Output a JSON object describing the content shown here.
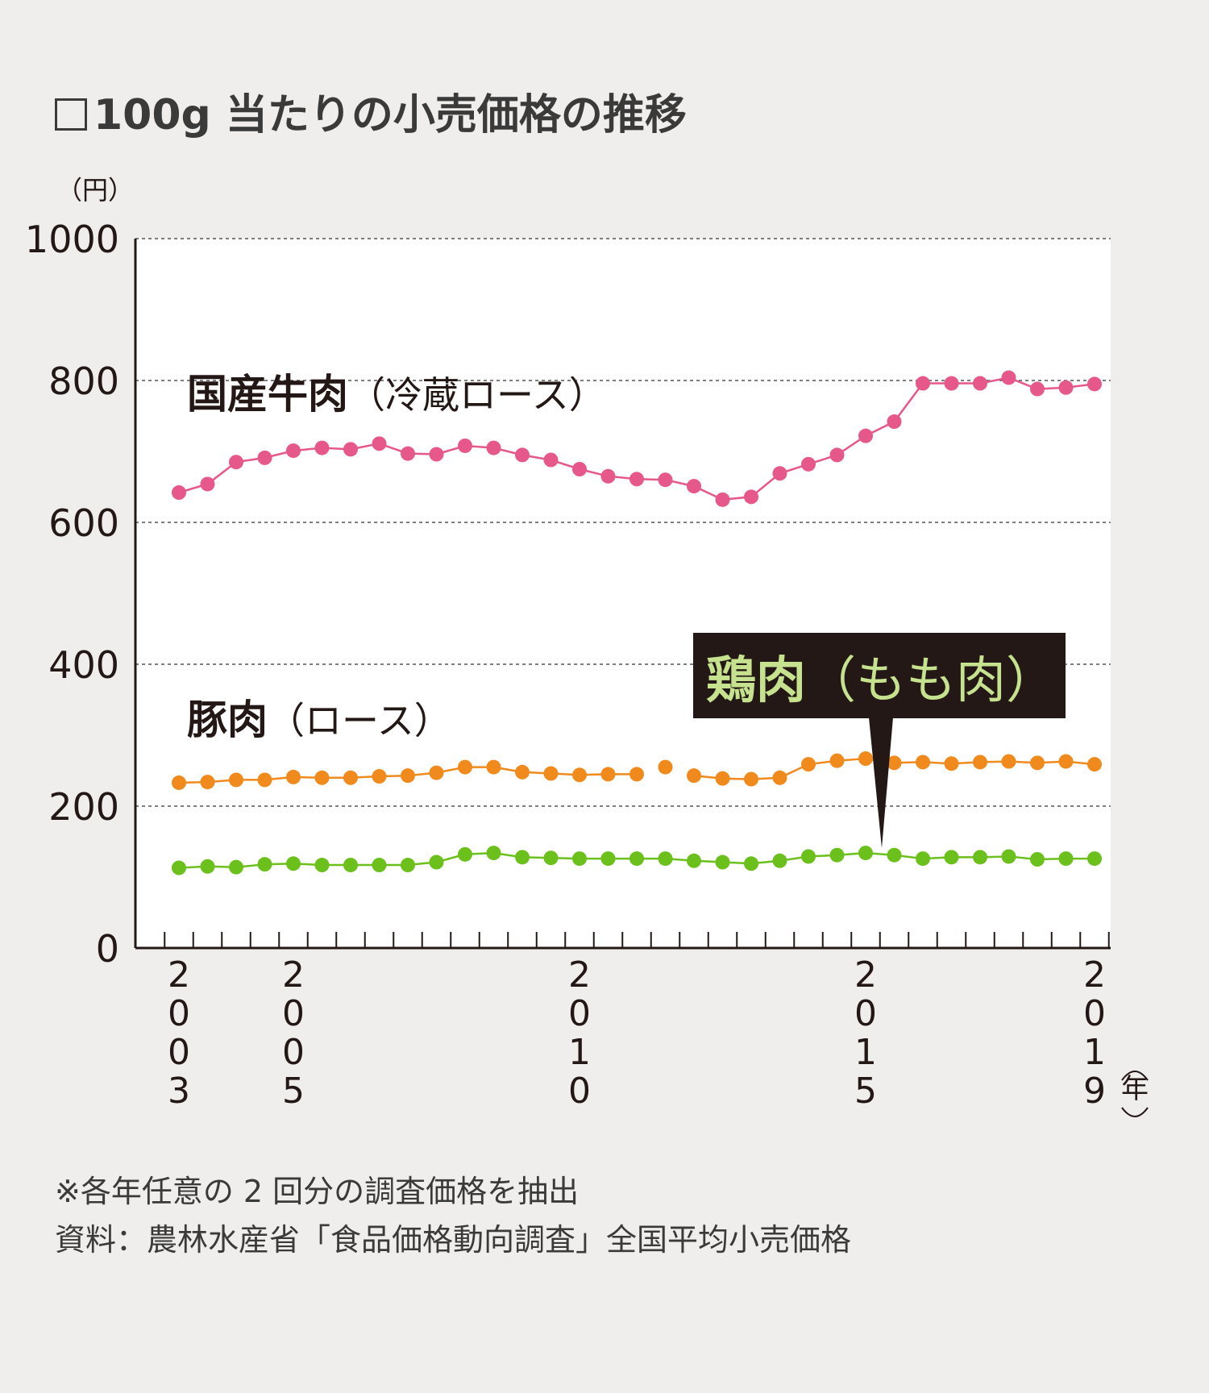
{
  "title": "100g 当たりの小売価格の推移",
  "notes": {
    "note": "※各年任意の 2 回分の調査価格を抽出",
    "source": "資料：農林水産省「食品価格動向調査」全国平均小売価格"
  },
  "colors": {
    "beef": "#e6578a",
    "pork": "#f08a1c",
    "chicken": "#6cc01c",
    "callout_bg": "#231815",
    "callout_text": "#c6e28f",
    "plot_bg": "#ffffff",
    "page_bg": "#efeeec"
  },
  "chart_data": {
    "type": "line",
    "y_unit_label": "（円）",
    "x_unit_label": "年",
    "ylim": [
      0,
      1000
    ],
    "yticks": [
      0,
      200,
      400,
      600,
      800,
      1000
    ],
    "grid": "horizontal dashed",
    "x_tick_labels": [
      {
        "index": 0,
        "label": "2003"
      },
      {
        "index": 4,
        "label": "2005"
      },
      {
        "index": 14,
        "label": "2010"
      },
      {
        "index": 24,
        "label": "2015"
      },
      {
        "index": 32,
        "label": "2019"
      }
    ],
    "x_points_per_year": 2,
    "series": [
      {
        "name": "国産牛肉",
        "name_suffix": "（冷蔵ロース）",
        "color_key": "beef",
        "values": [
          642,
          654,
          685,
          691,
          701,
          705,
          703,
          711,
          697,
          696,
          708,
          705,
          695,
          688,
          675,
          665,
          661,
          660,
          651,
          632,
          636,
          669,
          682,
          695,
          722,
          742,
          796,
          796,
          796,
          804,
          788,
          790,
          795
        ],
        "gaps": []
      },
      {
        "name": "豚肉",
        "name_suffix": "（ロース）",
        "color_key": "pork",
        "values": [
          233,
          234,
          237,
          237,
          241,
          240,
          240,
          242,
          243,
          247,
          255,
          255,
          248,
          246,
          244,
          245,
          245,
          255,
          243,
          239,
          238,
          240,
          259,
          264,
          267,
          261,
          262,
          260,
          262,
          263,
          261,
          263,
          259
        ],
        "gaps": [
          17
        ]
      },
      {
        "name": "鶏肉",
        "name_suffix": "（もも肉）",
        "color_key": "chicken",
        "values": [
          113,
          115,
          114,
          118,
          119,
          117,
          117,
          117,
          117,
          121,
          132,
          134,
          128,
          127,
          126,
          126,
          126,
          126,
          123,
          121,
          119,
          123,
          129,
          131,
          134,
          131,
          126,
          128,
          128,
          129,
          125,
          126,
          126
        ],
        "gaps": []
      }
    ]
  }
}
